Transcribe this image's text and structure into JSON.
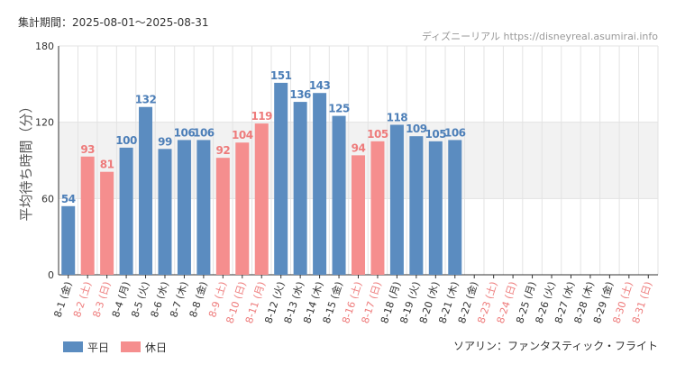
{
  "header": {
    "period": "集計期間：2025-08-01～2025-08-31",
    "source": "ディズニーリアル https://disneyreal.asumirai.info"
  },
  "footer": {
    "attraction": "ソアリン：ファンタスティック・フライト"
  },
  "colors": {
    "weekday": "#5b8cc0",
    "holiday": "#f58e8e",
    "weekday_label": "#4d7fb8",
    "holiday_label": "#ee7b7b",
    "band": "#f2f2f2",
    "grid": "#e3e3e3",
    "axis": "#333333"
  },
  "chart_data": {
    "type": "bar",
    "ylabel": "平均待ち時間（分）",
    "ylim": [
      0,
      180
    ],
    "yticks": [
      "0",
      "60",
      "120",
      "180"
    ],
    "legend": {
      "position": "bottom-left",
      "weekday": "平日",
      "holiday": "休日"
    },
    "categories": [
      "8-1 (金)",
      "8-2 (土)",
      "8-3 (日)",
      "8-4 (月)",
      "8-5 (火)",
      "8-6 (水)",
      "8-7 (木)",
      "8-8 (金)",
      "8-9 (土)",
      "8-10 (日)",
      "8-11 (月)",
      "8-12 (火)",
      "8-13 (水)",
      "8-14 (木)",
      "8-15 (金)",
      "8-16 (土)",
      "8-17 (日)",
      "8-18 (月)",
      "8-19 (火)",
      "8-20 (水)",
      "8-21 (木)",
      "8-22 (金)",
      "8-23 (土)",
      "8-24 (日)",
      "8-25 (月)",
      "8-26 (火)",
      "8-27 (水)",
      "8-28 (木)",
      "8-29 (金)",
      "8-30 (土)",
      "8-31 (日)"
    ],
    "values": [
      54,
      93,
      81,
      100,
      132,
      99,
      106,
      106,
      92,
      104,
      119,
      151,
      136,
      143,
      125,
      94,
      105,
      118,
      109,
      105,
      106,
      null,
      null,
      null,
      null,
      null,
      null,
      null,
      null,
      null,
      null
    ],
    "value_labels": [
      "54",
      "93",
      "81",
      "100",
      "132",
      "99",
      "106",
      "106",
      "92",
      "104",
      "119",
      "151",
      "136",
      "143",
      "125",
      "94",
      "105",
      "118",
      "109",
      "105",
      "106",
      "",
      "",
      "",
      "",
      "",
      "",
      "",
      "",
      "",
      ""
    ],
    "day_type": [
      "weekday",
      "holiday",
      "holiday",
      "weekday",
      "weekday",
      "weekday",
      "weekday",
      "weekday",
      "holiday",
      "holiday",
      "holiday",
      "weekday",
      "weekday",
      "weekday",
      "weekday",
      "holiday",
      "holiday",
      "weekday",
      "weekday",
      "weekday",
      "weekday",
      "weekday",
      "holiday",
      "holiday",
      "weekday",
      "weekday",
      "weekday",
      "weekday",
      "weekday",
      "holiday",
      "holiday"
    ]
  }
}
